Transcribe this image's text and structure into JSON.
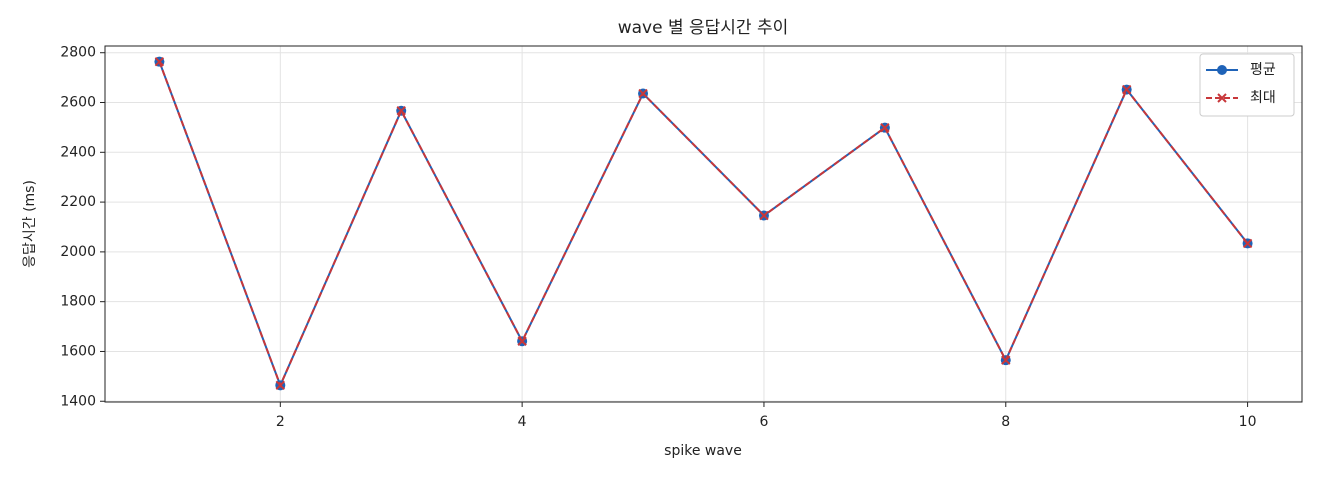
{
  "chart_data": {
    "type": "line",
    "title": "wave 별 응답시간 추이",
    "x_label": "spike wave",
    "y_label": "응답시간 (ms)",
    "x": [
      1,
      2,
      3,
      4,
      5,
      6,
      7,
      8,
      9,
      10
    ],
    "series": [
      {
        "name": "평균",
        "color": "#1f63b8",
        "marker": "circle",
        "dash": false,
        "values": [
          2764,
          1464,
          2567,
          1641,
          2636,
          2146,
          2499,
          1565,
          2652,
          2034
        ]
      },
      {
        "name": "최대",
        "color": "#c8373a",
        "marker": "x",
        "dash": true,
        "values": [
          2764,
          1464,
          2567,
          1641,
          2636,
          2146,
          2499,
          1565,
          2652,
          2034
        ]
      }
    ],
    "xlim": [
      0.55,
      10.45
    ],
    "xticks": [
      2,
      4,
      6,
      8,
      10
    ],
    "ylim": [
      1397,
      2827
    ],
    "yticks": [
      1400,
      1600,
      1800,
      2000,
      2200,
      2400,
      2600,
      2800
    ],
    "grid": true,
    "legend": "upper right"
  }
}
